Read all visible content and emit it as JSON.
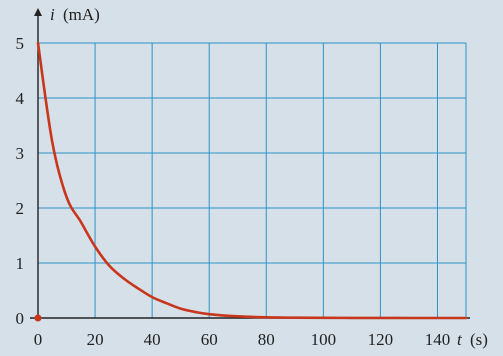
{
  "chart_data": {
    "type": "line",
    "x": [
      0,
      5,
      10,
      15,
      20,
      25,
      30,
      35,
      40,
      45,
      50,
      55,
      60,
      70,
      80,
      90,
      100,
      110,
      120,
      130,
      140,
      150
    ],
    "series": [
      {
        "values": [
          5.0,
          3.2,
          2.2,
          1.75,
          1.3,
          0.95,
          0.72,
          0.54,
          0.38,
          0.27,
          0.17,
          0.11,
          0.07,
          0.03,
          0.012,
          0.006,
          0.003,
          0.002,
          0.001,
          0.0,
          0.0,
          0.0
        ]
      }
    ],
    "x_ticks": [
      "0",
      "20",
      "40",
      "60",
      "80",
      "100",
      "120",
      "140"
    ],
    "y_ticks": [
      "0",
      "1",
      "2",
      "3",
      "4",
      "5"
    ],
    "xlim": [
      0,
      155
    ],
    "ylim": [
      0,
      5.5
    ],
    "grid": true,
    "ylabel": {
      "var": "i",
      "unit": "(mA)"
    },
    "xlabel": {
      "var": "t",
      "unit": "(s)"
    },
    "colors": {
      "curve": "#c8361c",
      "grid": "#2b93c9",
      "background": "#d5e0e8"
    }
  }
}
